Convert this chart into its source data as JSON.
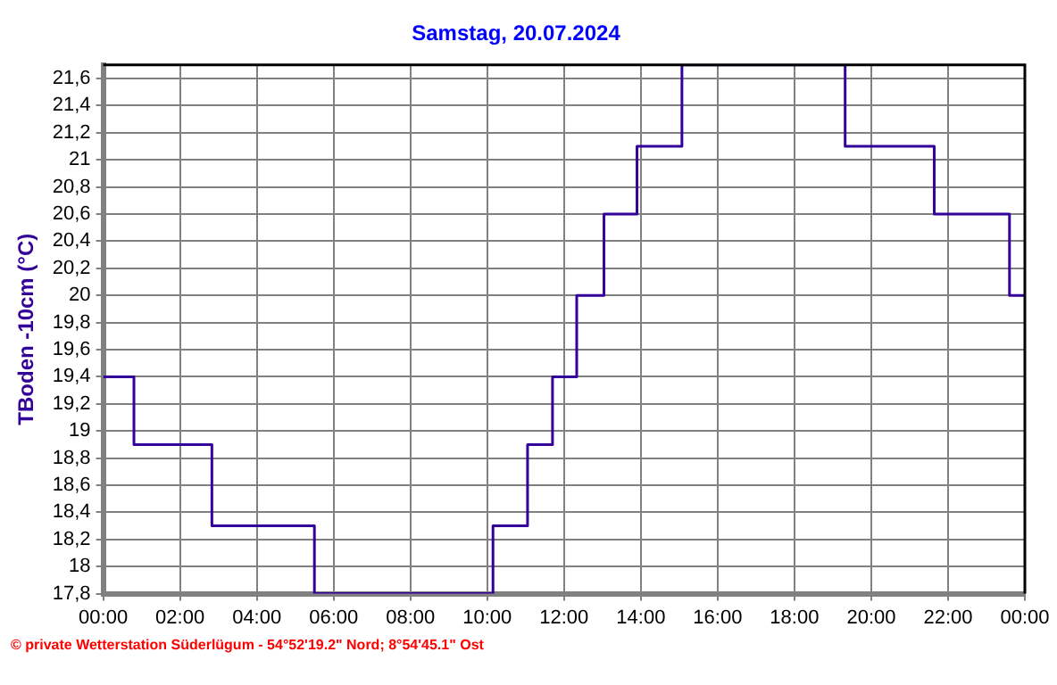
{
  "chart_data": {
    "type": "step",
    "title": "Samstag, 20.07.2024",
    "ylabel": "TBoden -10cm (°C)",
    "annotations": [
      "© private Wetterstation Süderlügum - 54°52'19.2\" Nord; 8°54'45.1\" Ost"
    ],
    "x": [
      0,
      0.8,
      2.83,
      5.5,
      10.15,
      11.05,
      11.7,
      12.33,
      13.04,
      13.9,
      15.07,
      19.32,
      21.64,
      23.6,
      24
    ],
    "series": [
      {
        "color": "#330099",
        "values": [
          19.4,
          18.9,
          18.3,
          17.8,
          18.3,
          18.9,
          19.4,
          20.0,
          20.6,
          21.1,
          21.7,
          21.1,
          20.6,
          20.0,
          20.0
        ]
      }
    ],
    "xlim": [
      0,
      24
    ],
    "xticks": [
      {
        "value": 0,
        "label": "00:00"
      },
      {
        "value": 2,
        "label": "02:00"
      },
      {
        "value": 4,
        "label": "04:00"
      },
      {
        "value": 6,
        "label": "06:00"
      },
      {
        "value": 8,
        "label": "08:00"
      },
      {
        "value": 10,
        "label": "10:00"
      },
      {
        "value": 12,
        "label": "12:00"
      },
      {
        "value": 14,
        "label": "14:00"
      },
      {
        "value": 16,
        "label": "16:00"
      },
      {
        "value": 18,
        "label": "18:00"
      },
      {
        "value": 20,
        "label": "20:00"
      },
      {
        "value": 22,
        "label": "22:00"
      },
      {
        "value": 24,
        "label": "00:00"
      }
    ],
    "ylim": [
      17.8,
      21.7
    ],
    "yticks": [
      {
        "value": 17.8,
        "label": "17,8"
      },
      18,
      {
        "value": 18.2,
        "label": "18,2"
      },
      {
        "value": 18.4,
        "label": "18,4"
      },
      {
        "value": 18.6,
        "label": "18,6"
      },
      {
        "value": 18.8,
        "label": "18,8"
      },
      19,
      {
        "value": 19.2,
        "label": "19,2"
      },
      {
        "value": 19.4,
        "label": "19,4"
      },
      {
        "value": 19.6,
        "label": "19,6"
      },
      {
        "value": 19.8,
        "label": "19,8"
      },
      20,
      {
        "value": 20.2,
        "label": "20,2"
      },
      {
        "value": 20.4,
        "label": "20,4"
      },
      {
        "value": 20.6,
        "label": "20,6"
      },
      {
        "value": 20.8,
        "label": "20,8"
      },
      21,
      {
        "value": 21.2,
        "label": "21,2"
      },
      {
        "value": 21.4,
        "label": "21,4"
      },
      {
        "value": 21.6,
        "label": "21,6"
      }
    ],
    "grid": true,
    "legend": false,
    "marker": "none",
    "line_style": "solid"
  }
}
